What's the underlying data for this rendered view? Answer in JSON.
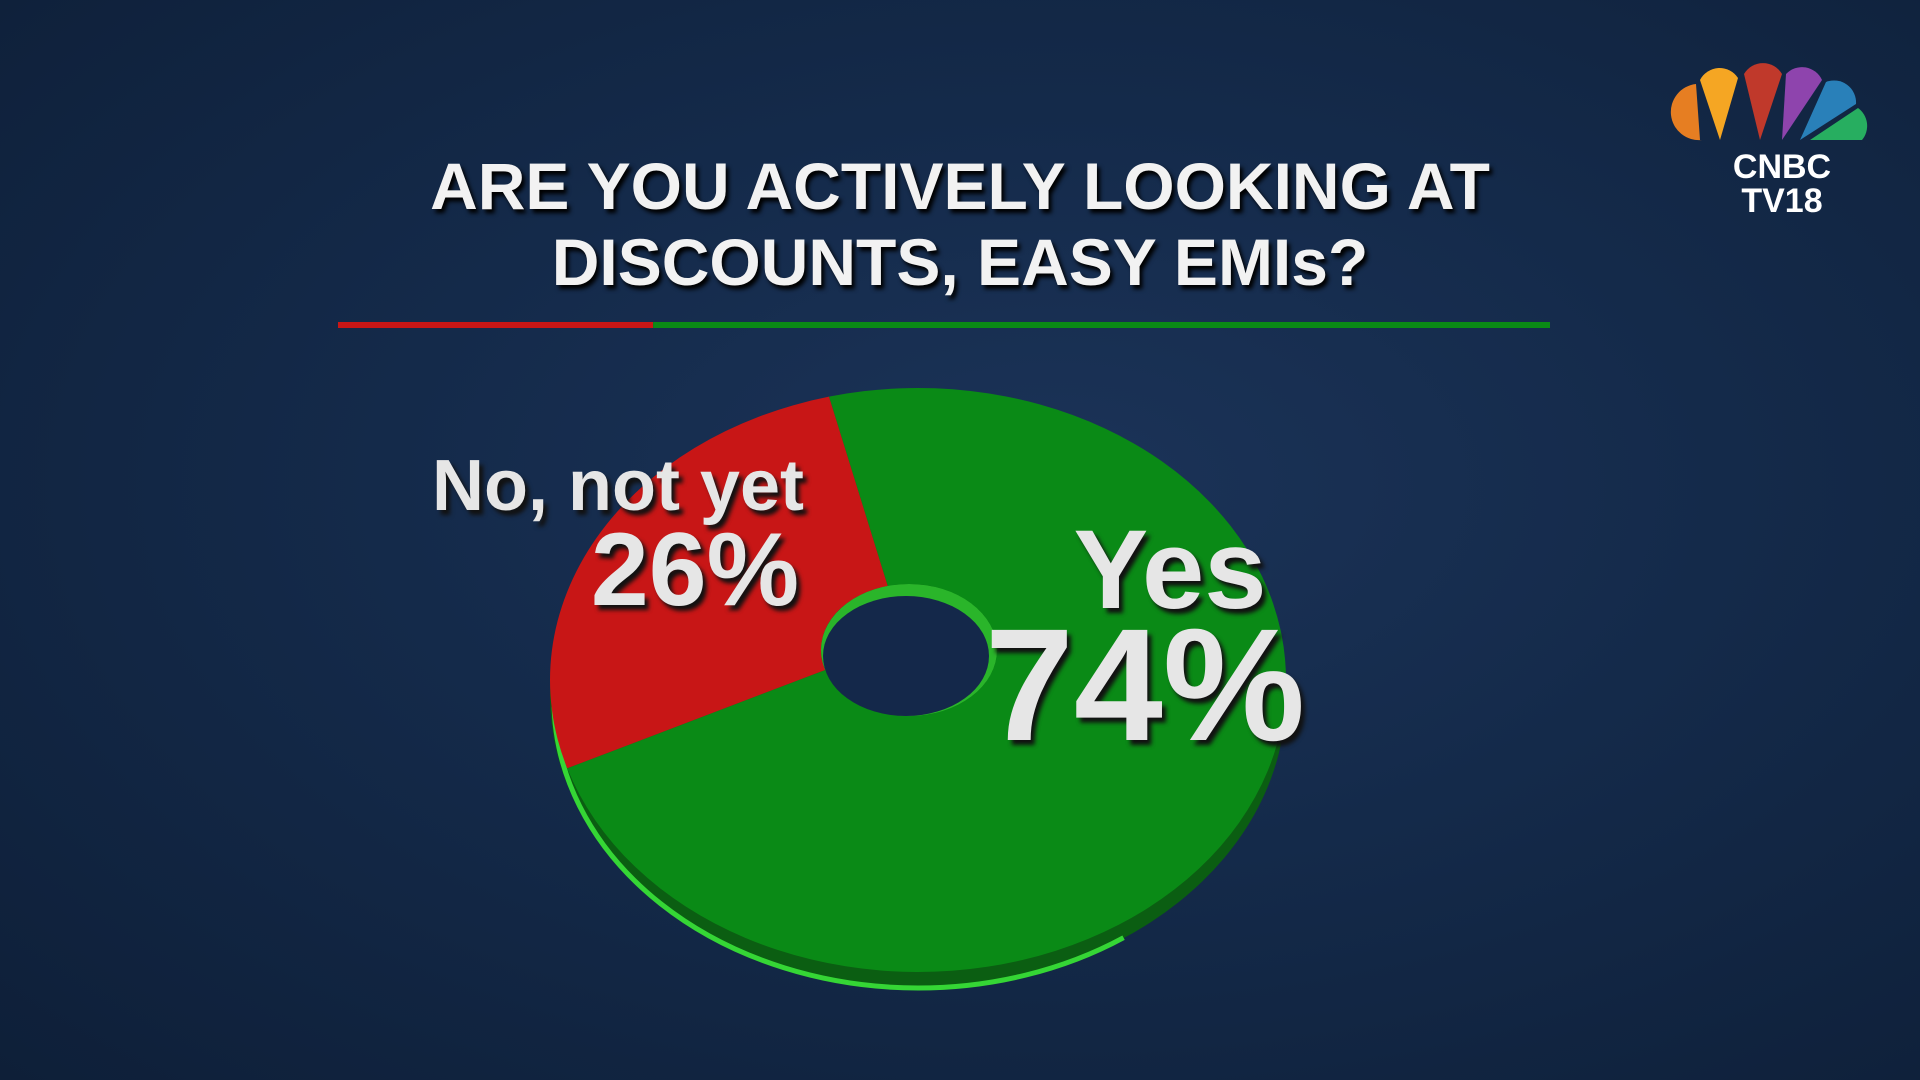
{
  "logo": {
    "line1": "CNBC",
    "line2": "TV18"
  },
  "chart_data": {
    "type": "pie",
    "title": "ARE YOU ACTIVELY LOOKING AT DISCOUNTS, EASY EMIs?",
    "categories": [
      "Yes",
      "No, not yet"
    ],
    "values": [
      74,
      26
    ],
    "value_labels": [
      "74%",
      "26%"
    ],
    "colors": [
      "#0a8a16",
      "#c81616"
    ],
    "donut": true
  }
}
